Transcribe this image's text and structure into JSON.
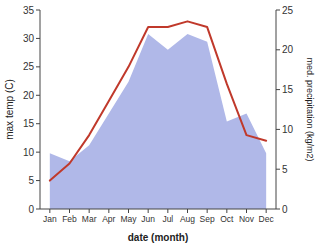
{
  "chart_data": {
    "type": "line",
    "xlabel": "date (month)",
    "ylabel": "max temp (C)",
    "y2label": "med. precipitation (kg/m2)",
    "categories": [
      "Jan",
      "Feb",
      "Mar",
      "Apr",
      "May",
      "Jun",
      "Jul",
      "Aug",
      "Sep",
      "Oct",
      "Nov",
      "Dec"
    ],
    "series": [
      {
        "type": "area",
        "axis": "y2",
        "color": "#b0b8e8",
        "values": [
          7,
          6,
          8,
          12,
          16,
          22,
          20,
          22,
          21,
          11,
          12,
          7
        ]
      },
      {
        "type": "line",
        "color": "#c0392b",
        "values": [
          5,
          8,
          13,
          19,
          25,
          32,
          32,
          33,
          32,
          22,
          13,
          12
        ]
      }
    ],
    "ylim": [
      0,
      35
    ],
    "yticks": [
      0,
      5,
      10,
      15,
      20,
      25,
      30,
      35
    ],
    "y2lim": [
      0,
      25
    ],
    "y2ticks": [
      0,
      5,
      10,
      15,
      20,
      25
    ],
    "grid": false
  }
}
